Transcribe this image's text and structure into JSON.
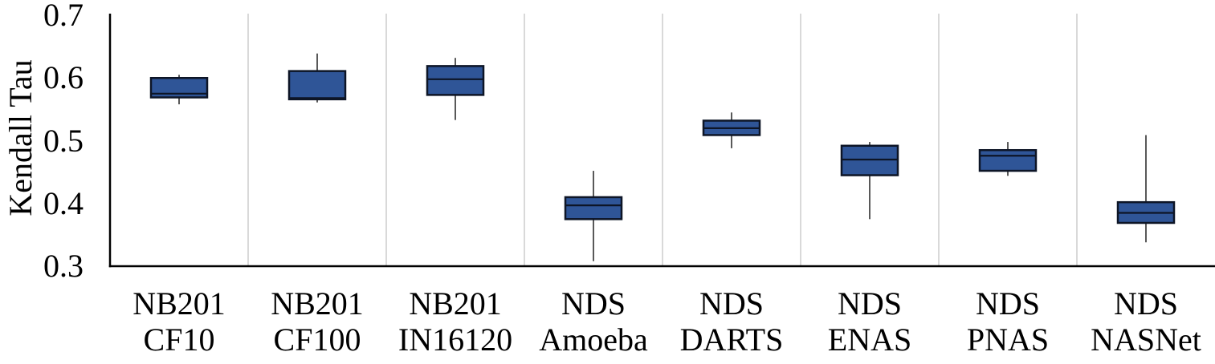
{
  "chart_data": {
    "type": "box",
    "title": "",
    "ylabel": "Kendall Tau",
    "xlabel": "",
    "ylim": [
      0.3,
      0.7
    ],
    "ytick_values": [
      0.7,
      0.6,
      0.5,
      0.4,
      0.3
    ],
    "ytick_labels": [
      "0.7",
      "0.6",
      "0.5",
      "0.4",
      "0.3"
    ],
    "grid": {
      "vertical_category_separators": true,
      "horizontal_gridlines": false
    },
    "legend_position": "none",
    "categories": [
      {
        "line1": "NB201",
        "line2": "CF10"
      },
      {
        "line1": "NB201",
        "line2": "CF100"
      },
      {
        "line1": "NB201",
        "line2": "IN16120"
      },
      {
        "line1": "NDS",
        "line2": "Amoeba"
      },
      {
        "line1": "NDS",
        "line2": "DARTS"
      },
      {
        "line1": "NDS",
        "line2": "ENAS"
      },
      {
        "line1": "NDS",
        "line2": "PNAS"
      },
      {
        "line1": "NDS",
        "line2": "NASNet"
      }
    ],
    "series": [
      {
        "name": "NB201 CF10",
        "whisker_low": 0.558,
        "q1": 0.569,
        "median": 0.575,
        "q3": 0.6,
        "whisker_high": 0.605
      },
      {
        "name": "NB201 CF100",
        "whisker_low": 0.561,
        "q1": 0.566,
        "median": 0.568,
        "q3": 0.611,
        "whisker_high": 0.639
      },
      {
        "name": "NB201 IN16120",
        "whisker_low": 0.533,
        "q1": 0.573,
        "median": 0.598,
        "q3": 0.619,
        "whisker_high": 0.632
      },
      {
        "name": "NDS Amoeba",
        "whisker_low": 0.308,
        "q1": 0.375,
        "median": 0.397,
        "q3": 0.41,
        "whisker_high": 0.452
      },
      {
        "name": "NDS DARTS",
        "whisker_low": 0.488,
        "q1": 0.509,
        "median": 0.52,
        "q3": 0.532,
        "whisker_high": 0.545
      },
      {
        "name": "NDS ENAS",
        "whisker_low": 0.375,
        "q1": 0.445,
        "median": 0.47,
        "q3": 0.492,
        "whisker_high": 0.498
      },
      {
        "name": "NDS PNAS",
        "whisker_low": 0.444,
        "q1": 0.452,
        "median": 0.476,
        "q3": 0.485,
        "whisker_high": 0.498
      },
      {
        "name": "NDS NASNet",
        "whisker_low": 0.338,
        "q1": 0.369,
        "median": 0.385,
        "q3": 0.402,
        "whisker_high": 0.509
      }
    ]
  },
  "colors": {
    "box_fill": "#2F5597",
    "box_border": "#0D1526",
    "median_line": "#0D1526",
    "whisker": "#595959",
    "gridline": "#D9D9D9",
    "axis": "#000000",
    "text": "#000000",
    "background": "#FFFFFF"
  }
}
